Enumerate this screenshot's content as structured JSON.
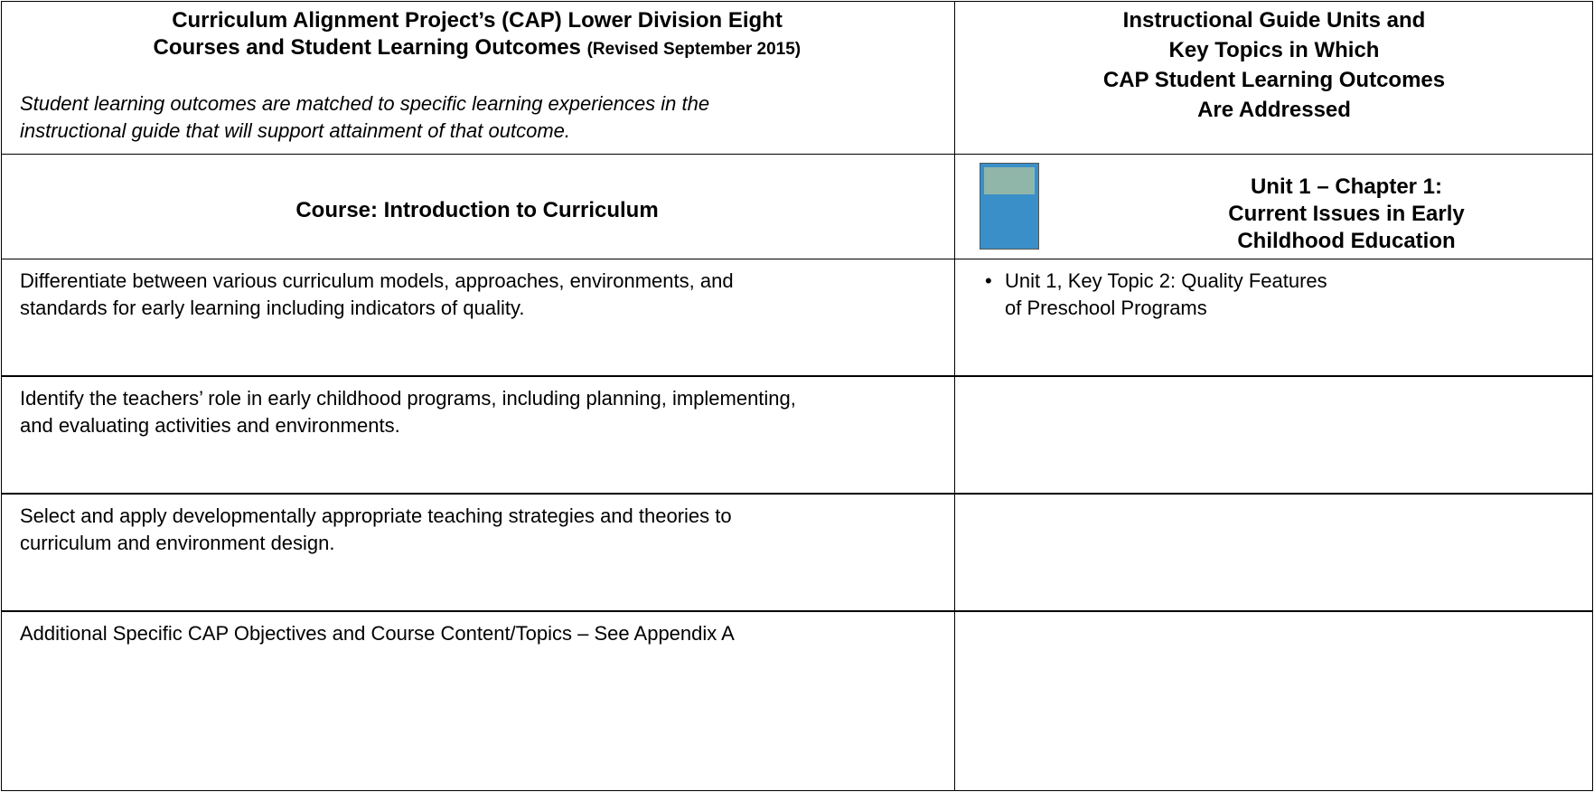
{
  "header": {
    "title_lines": [
      "Curriculum Alignment Project’s (CAP) Lower Division Eight",
      "Courses and Student Learning Outcomes"
    ],
    "revised": "(Revised September 2015)",
    "note_lines": [
      "Student learning outcomes are matched to specific learning experiences in the",
      "instructional guide that will support attainment of that outcome."
    ],
    "right_lines": [
      "Instructional Guide Units and",
      "Key Topics in Which",
      "CAP Student Learning Outcomes",
      "Are Addressed"
    ]
  },
  "course": "Course:  Introduction to Curriculum",
  "unit_lines": [
    "Unit 1 – Chapter 1:",
    "Current Issues in Early",
    "Childhood Education"
  ],
  "rows": [
    {
      "outcome_lines": [
        "Differentiate between various curriculum models, approaches, environments, and",
        "standards for early learning including indicators of quality."
      ],
      "topics": [
        [
          "Unit 1, Key Topic 2: Quality Features",
          "of Preschool Programs"
        ]
      ]
    },
    {
      "outcome_lines": [
        "Identify the teachers’ role in early childhood programs, including planning, implementing,",
        "and evaluating activities and environments."
      ],
      "topics": []
    },
    {
      "outcome_lines": [
        "Select and apply developmentally appropriate teaching strategies and theories to",
        "curriculum and environment design."
      ],
      "topics": []
    },
    {
      "outcome_lines": [
        "Additional Specific CAP Objectives and Course Content/Topics – See Appendix A"
      ],
      "topics": []
    }
  ]
}
